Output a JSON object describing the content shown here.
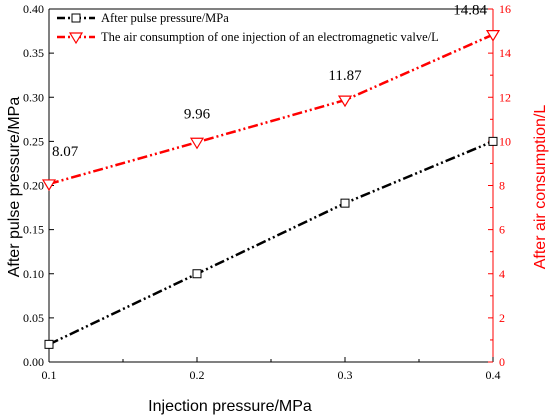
{
  "chart_data": {
    "type": "line",
    "x": [
      0.1,
      0.2,
      0.3,
      0.4
    ],
    "xlabel": "Injection pressure/MPa",
    "xlim": [
      0.1,
      0.4
    ],
    "xticks": [
      "0.1",
      "0.2",
      "0.3",
      "0.4"
    ],
    "ylabel_left": "After pulse pressure/MPa",
    "ylim_left": [
      0,
      0.4
    ],
    "yticks_left": [
      "0.00",
      "0.05",
      "0.10",
      "0.15",
      "0.20",
      "0.25",
      "0.30",
      "0.35",
      "0.40"
    ],
    "ylabel_right": "After  air consumption/L",
    "ylim_right": [
      0,
      16
    ],
    "yticks_right": [
      "0",
      "2",
      "4",
      "6",
      "8",
      "10",
      "12",
      "14",
      "16"
    ],
    "grid": false,
    "legend_position": "top-left",
    "series": [
      {
        "name": "After pulse pressure/MPa",
        "axis": "left",
        "values": [
          0.02,
          0.1,
          0.18,
          0.25
        ],
        "color": "#000000",
        "marker": "square",
        "data_labels": []
      },
      {
        "name": "The air consumption of one injection of an electromagnetic valve/L",
        "axis": "right",
        "values": [
          8.07,
          9.96,
          11.87,
          14.84
        ],
        "color": "#ff0000",
        "marker": "triangle-down",
        "data_labels": [
          "8.07",
          "9.96",
          "11.87",
          "14.84"
        ]
      }
    ]
  }
}
